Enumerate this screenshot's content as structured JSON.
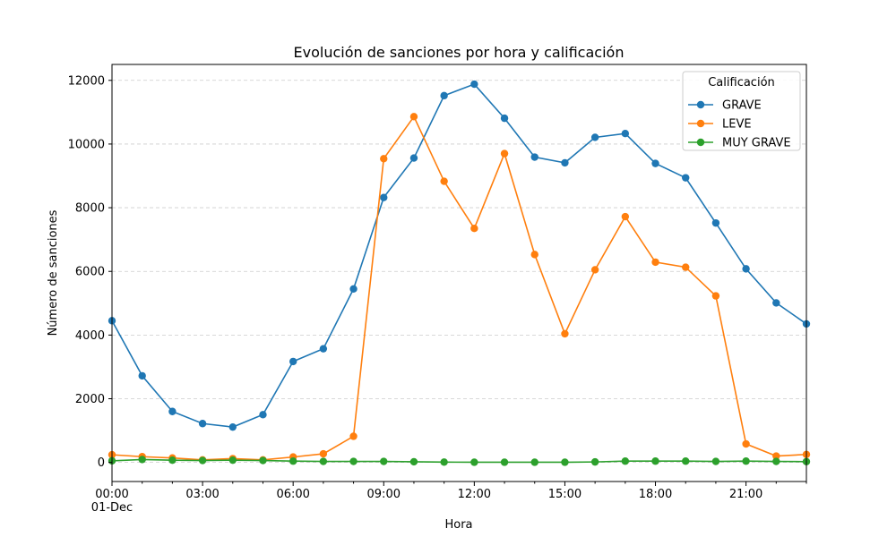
{
  "chart_data": {
    "type": "line",
    "title": "Evolución de sanciones por hora y calificación",
    "xlabel": "Hora",
    "ylabel": "Número de sanciones",
    "x": [
      0,
      1,
      2,
      3,
      4,
      5,
      6,
      7,
      8,
      9,
      10,
      11,
      12,
      13,
      14,
      15,
      16,
      17,
      18,
      19,
      20,
      21,
      22,
      23
    ],
    "xlim": [
      0,
      23
    ],
    "ylim": [
      -600,
      12500
    ],
    "x_ticks": [
      {
        "value": 0,
        "label": "00:00",
        "sublabel": "01-Dec"
      },
      {
        "value": 3,
        "label": "03:00"
      },
      {
        "value": 6,
        "label": "06:00"
      },
      {
        "value": 9,
        "label": "09:00"
      },
      {
        "value": 12,
        "label": "12:00"
      },
      {
        "value": 15,
        "label": "15:00"
      },
      {
        "value": 18,
        "label": "18:00"
      },
      {
        "value": 21,
        "label": "21:00"
      }
    ],
    "y_ticks": [
      0,
      2000,
      4000,
      6000,
      8000,
      10000,
      12000
    ],
    "grid": "y-dashed",
    "legend": {
      "title": "Calificación",
      "placement": "top-right"
    },
    "series": [
      {
        "name": "GRAVE",
        "color": "#1f77b4",
        "values": [
          4450,
          2720,
          1600,
          1220,
          1110,
          1500,
          3170,
          3570,
          5450,
          8320,
          9560,
          11520,
          11880,
          10810,
          9590,
          9410,
          10210,
          10330,
          9390,
          8940,
          7520,
          6080,
          5010,
          4350
        ]
      },
      {
        "name": "LEVE",
        "color": "#ff7f0e",
        "values": [
          240,
          180,
          140,
          80,
          120,
          80,
          170,
          270,
          820,
          9540,
          10860,
          8830,
          7350,
          9700,
          6530,
          4040,
          6050,
          7720,
          6290,
          6130,
          5230,
          580,
          200,
          250
        ]
      },
      {
        "name": "MUY GRAVE",
        "color": "#2ca02c",
        "values": [
          50,
          90,
          70,
          60,
          70,
          60,
          40,
          30,
          30,
          30,
          20,
          10,
          5,
          5,
          5,
          5,
          15,
          40,
          40,
          40,
          30,
          40,
          30,
          25
        ]
      }
    ]
  }
}
